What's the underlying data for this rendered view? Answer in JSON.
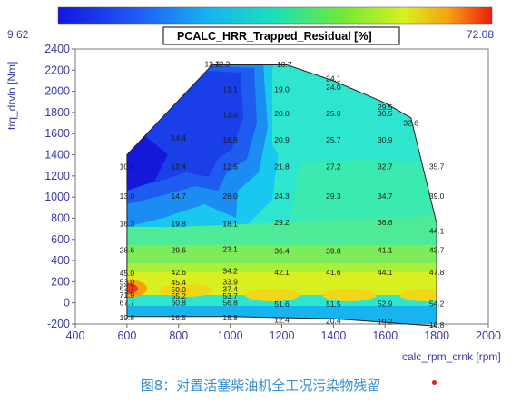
{
  "chart_data": {
    "type": "heatmap",
    "title": "PCALC_HRR_Trapped_Residual [%]",
    "xlabel": "calc_rpm_crnk [rpm]",
    "ylabel": "trq_drvln [Nm]",
    "xlim": [
      400,
      2000
    ],
    "ylim": [
      -200,
      2400
    ],
    "xticks": [
      "400",
      "600",
      "800",
      "1000",
      "1200",
      "1400",
      "1600",
      "1800",
      "2000"
    ],
    "yticks": [
      "-200",
      "0",
      "200",
      "400",
      "600",
      "800",
      "1000",
      "1200",
      "1400",
      "1600",
      "1800",
      "2000",
      "2200",
      "2400"
    ],
    "colorbar": {
      "min": "9.62",
      "max": "72.08"
    },
    "envelope": [
      [
        600,
        1400
      ],
      [
        930,
        2250
      ],
      [
        1220,
        2250
      ],
      [
        1400,
        2100
      ],
      [
        1600,
        1890
      ],
      [
        1700,
        1750
      ],
      [
        1800,
        750
      ],
      [
        1800,
        -220
      ],
      [
        1400,
        -150
      ],
      [
        1000,
        -130
      ],
      [
        600,
        -130
      ]
    ],
    "points": [
      {
        "x": 930,
        "y": 2260,
        "v": "12.2"
      },
      {
        "x": 970,
        "y": 2260,
        "v": "12.3"
      },
      {
        "x": 1210,
        "y": 2255,
        "v": "18.7"
      },
      {
        "x": 1400,
        "y": 2120,
        "v": "24.1"
      },
      {
        "x": 1400,
        "y": 2040,
        "v": "24.0"
      },
      {
        "x": 1000,
        "y": 2020,
        "v": "13.1"
      },
      {
        "x": 1200,
        "y": 2020,
        "v": "19.0"
      },
      {
        "x": 1600,
        "y": 1850,
        "v": "29.5"
      },
      {
        "x": 1600,
        "y": 1790,
        "v": "30.5"
      },
      {
        "x": 1700,
        "y": 1700,
        "v": "32.6"
      },
      {
        "x": 1000,
        "y": 1780,
        "v": "13.0"
      },
      {
        "x": 1200,
        "y": 1790,
        "v": "20.0"
      },
      {
        "x": 1400,
        "y": 1790,
        "v": "25.0"
      },
      {
        "x": 800,
        "y": 1560,
        "v": "14.4"
      },
      {
        "x": 1000,
        "y": 1540,
        "v": "16.8"
      },
      {
        "x": 1200,
        "y": 1540,
        "v": "20.9"
      },
      {
        "x": 1400,
        "y": 1540,
        "v": "25.7"
      },
      {
        "x": 1600,
        "y": 1540,
        "v": "30.9"
      },
      {
        "x": 600,
        "y": 1290,
        "v": "10.9"
      },
      {
        "x": 800,
        "y": 1290,
        "v": "12.4"
      },
      {
        "x": 1000,
        "y": 1290,
        "v": "12.5"
      },
      {
        "x": 1200,
        "y": 1290,
        "v": "21.8"
      },
      {
        "x": 1400,
        "y": 1290,
        "v": "27.2"
      },
      {
        "x": 1600,
        "y": 1290,
        "v": "32.7"
      },
      {
        "x": 1800,
        "y": 1290,
        "v": "35.7"
      },
      {
        "x": 600,
        "y": 1010,
        "v": "13.0"
      },
      {
        "x": 800,
        "y": 1010,
        "v": "14.7"
      },
      {
        "x": 1000,
        "y": 1010,
        "v": "28.0"
      },
      {
        "x": 1200,
        "y": 1010,
        "v": "24.3"
      },
      {
        "x": 1400,
        "y": 1010,
        "v": "29.3"
      },
      {
        "x": 1600,
        "y": 1010,
        "v": "34.7"
      },
      {
        "x": 1800,
        "y": 1010,
        "v": "39.0"
      },
      {
        "x": 600,
        "y": 750,
        "v": "16.3"
      },
      {
        "x": 800,
        "y": 750,
        "v": "19.8"
      },
      {
        "x": 1000,
        "y": 750,
        "v": "18.1"
      },
      {
        "x": 1200,
        "y": 760,
        "v": "29.2"
      },
      {
        "x": 1600,
        "y": 760,
        "v": "36.6"
      },
      {
        "x": 1800,
        "y": 680,
        "v": "44.1"
      },
      {
        "x": 600,
        "y": 500,
        "v": "28.6"
      },
      {
        "x": 800,
        "y": 500,
        "v": "29.6"
      },
      {
        "x": 1000,
        "y": 510,
        "v": "23.1"
      },
      {
        "x": 1200,
        "y": 490,
        "v": "36.4"
      },
      {
        "x": 1400,
        "y": 490,
        "v": "39.8"
      },
      {
        "x": 1600,
        "y": 500,
        "v": "41.1"
      },
      {
        "x": 1800,
        "y": 500,
        "v": "43.7"
      },
      {
        "x": 600,
        "y": 280,
        "v": "45.0"
      },
      {
        "x": 800,
        "y": 290,
        "v": "42.6"
      },
      {
        "x": 1000,
        "y": 300,
        "v": "34.2"
      },
      {
        "x": 1200,
        "y": 290,
        "v": "42.1"
      },
      {
        "x": 1400,
        "y": 290,
        "v": "41.6"
      },
      {
        "x": 1600,
        "y": 290,
        "v": "44.1"
      },
      {
        "x": 1800,
        "y": 290,
        "v": "47.8"
      },
      {
        "x": 600,
        "y": 200,
        "v": "53.0"
      },
      {
        "x": 800,
        "y": 195,
        "v": "45.4"
      },
      {
        "x": 1000,
        "y": 200,
        "v": "33.9"
      },
      {
        "x": 600,
        "y": 140,
        "v": "62.7"
      },
      {
        "x": 800,
        "y": 125,
        "v": "50.0"
      },
      {
        "x": 1000,
        "y": 130,
        "v": "37.4"
      },
      {
        "x": 600,
        "y": 75,
        "v": "71.9"
      },
      {
        "x": 800,
        "y": 65,
        "v": "55.2"
      },
      {
        "x": 1000,
        "y": 65,
        "v": "53.7"
      },
      {
        "x": 600,
        "y": 0,
        "v": "67.7"
      },
      {
        "x": 800,
        "y": 0,
        "v": "60.8"
      },
      {
        "x": 1000,
        "y": 0,
        "v": "56.8"
      },
      {
        "x": 1200,
        "y": -10,
        "v": "51.6"
      },
      {
        "x": 1400,
        "y": -10,
        "v": "51.5"
      },
      {
        "x": 1600,
        "y": -5,
        "v": "52.9"
      },
      {
        "x": 1800,
        "y": -5,
        "v": "54.2"
      },
      {
        "x": 600,
        "y": -140,
        "v": "19.8"
      },
      {
        "x": 800,
        "y": -140,
        "v": "16.5"
      },
      {
        "x": 1000,
        "y": -140,
        "v": "18.8"
      },
      {
        "x": 1200,
        "y": -160,
        "v": "12.4"
      },
      {
        "x": 1400,
        "y": -170,
        "v": "20.4"
      },
      {
        "x": 1600,
        "y": -180,
        "v": "19.2"
      },
      {
        "x": 1800,
        "y": -210,
        "v": "16.8"
      }
    ],
    "caption": "图8：对置活塞柴油机全工况污染物残留"
  }
}
